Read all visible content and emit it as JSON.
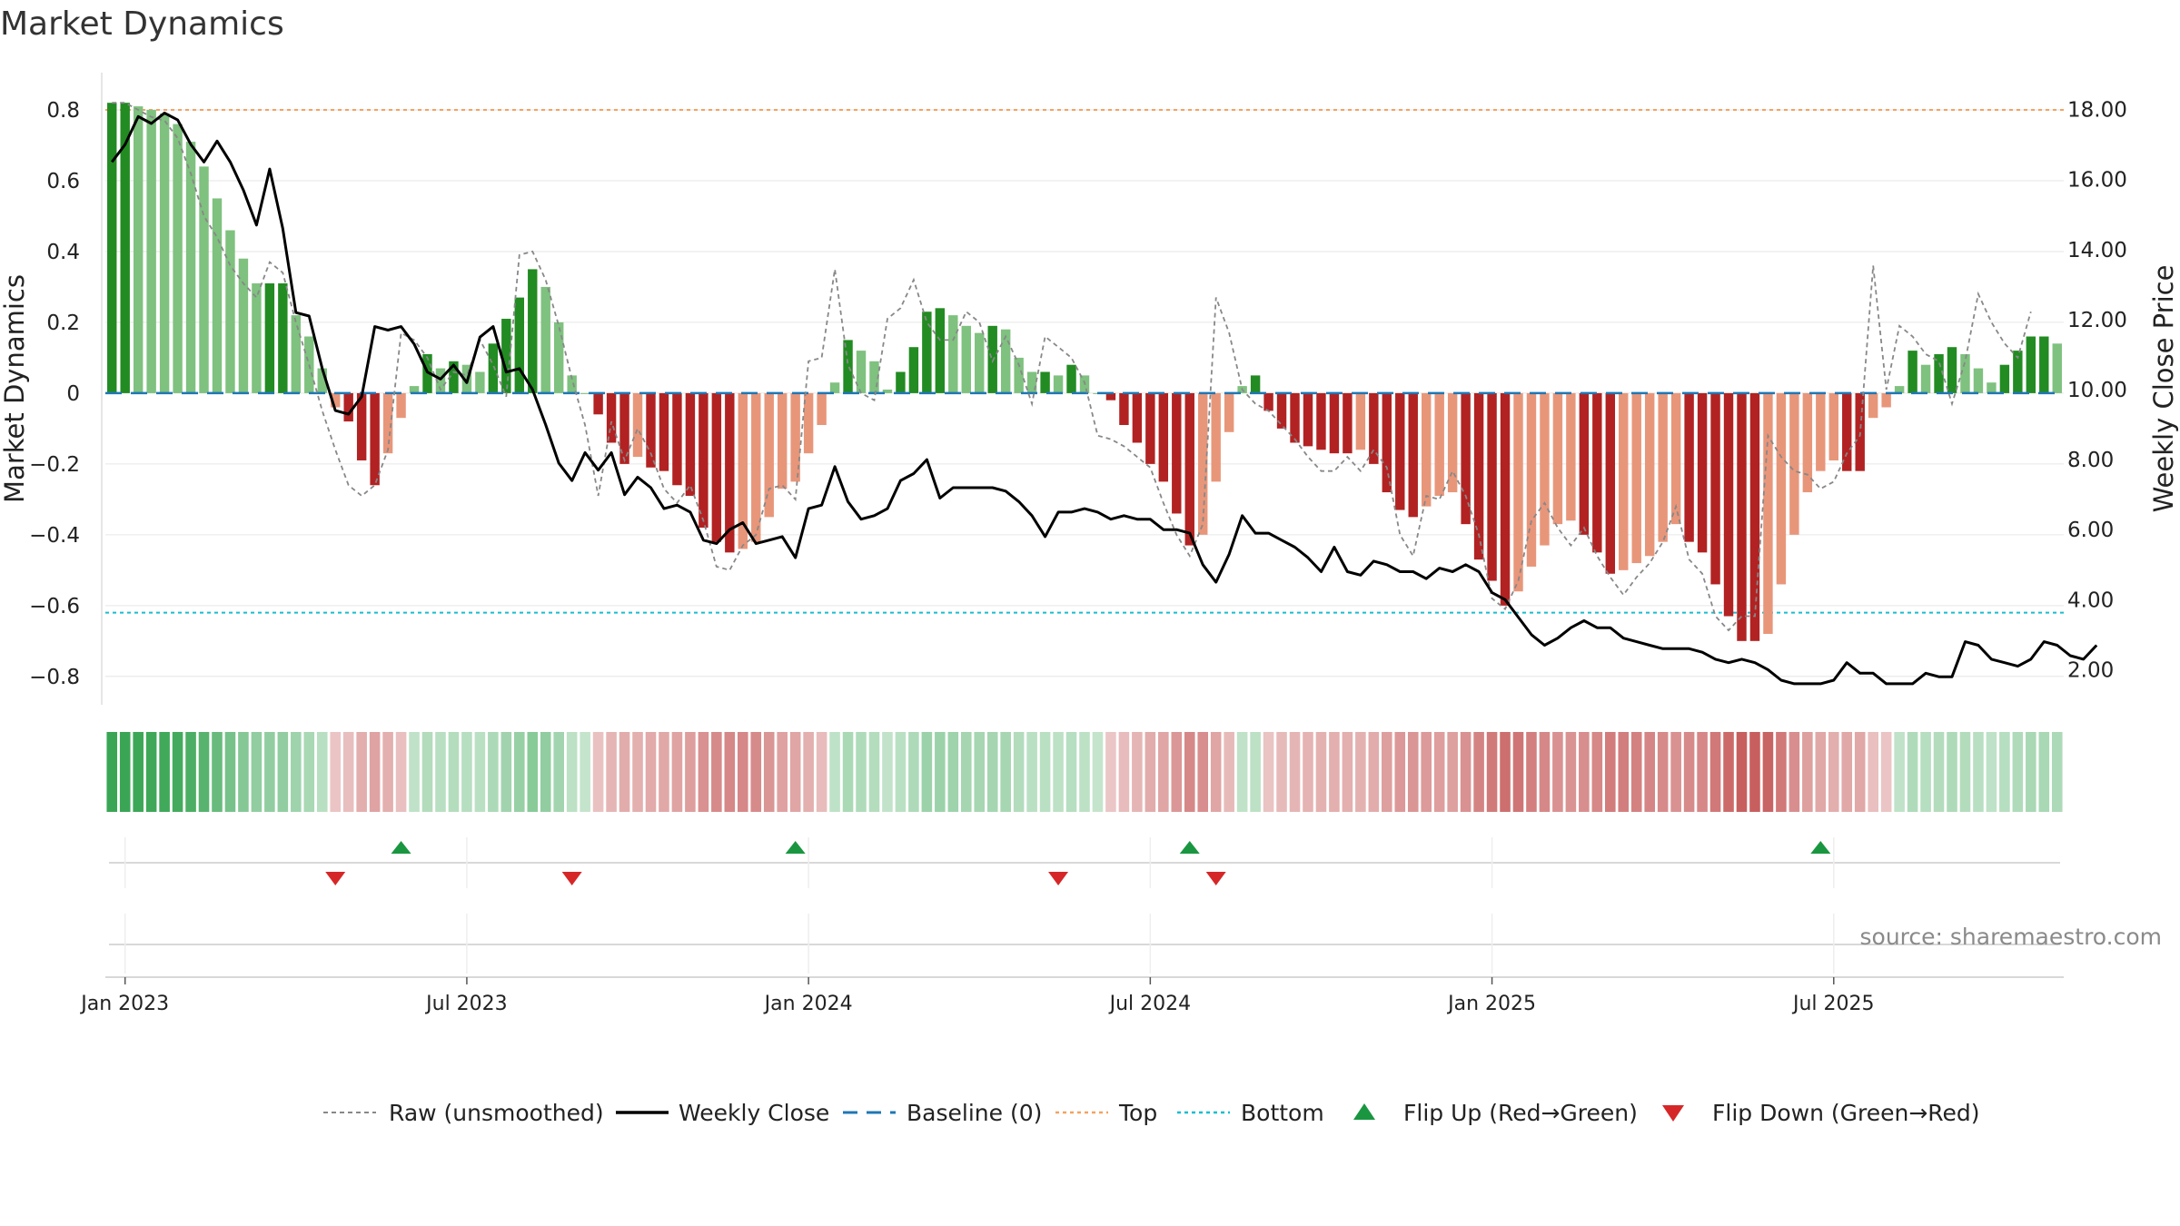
{
  "chart_data": {
    "type": "bar",
    "title": "Market Dynamics",
    "ylabel_left": "Market Dynamics",
    "ylabel_right": "Weekly Close Price",
    "source": "source: sharemaestro.com",
    "ylim_left": [
      -0.88,
      0.9
    ],
    "ylim_right": [
      1.0,
      19.0
    ],
    "left_ticks": [
      {
        "v": 0.8,
        "label": "0.8"
      },
      {
        "v": 0.6,
        "label": "0.6"
      },
      {
        "v": 0.4,
        "label": "0.4"
      },
      {
        "v": 0.2,
        "label": "0.2"
      },
      {
        "v": 0,
        "label": "0"
      },
      {
        "v": -0.2,
        "label": "−0.2"
      },
      {
        "v": -0.4,
        "label": "−0.4"
      },
      {
        "v": -0.6,
        "label": "−0.6"
      },
      {
        "v": -0.8,
        "label": "−0.8"
      }
    ],
    "right_ticks": [
      {
        "v": 18,
        "label": "18.00"
      },
      {
        "v": 16,
        "label": "16.00"
      },
      {
        "v": 14,
        "label": "14.00"
      },
      {
        "v": 12,
        "label": "12.00"
      },
      {
        "v": 10,
        "label": "10.00"
      },
      {
        "v": 8,
        "label": "8.00"
      },
      {
        "v": 6,
        "label": "6.00"
      },
      {
        "v": 4,
        "label": "4.00"
      },
      {
        "v": 2,
        "label": "2.00"
      }
    ],
    "x_ticks": [
      {
        "i": 1,
        "label": "Jan 2023"
      },
      {
        "i": 27,
        "label": "Jul 2023"
      },
      {
        "i": 53,
        "label": "Jan 2024"
      },
      {
        "i": 79,
        "label": "Jul 2024"
      },
      {
        "i": 105,
        "label": "Jan 2025"
      },
      {
        "i": 131,
        "label": "Jul 2025"
      }
    ],
    "reference_lines": {
      "baseline": 0,
      "top": 0.8,
      "bottom": -0.62
    },
    "colors": {
      "strong_green": "#228b22",
      "light_green": "#7fc17f",
      "strong_red": "#b22222",
      "light_red": "#e8967a",
      "close": "#000000",
      "raw": "#888888",
      "baseline": "#1f77b4",
      "top": "#f4a261",
      "bottom": "#17becf",
      "flip_up": "#1a9641",
      "flip_down": "#d62728"
    },
    "series": [
      {
        "name": "Market Dynamics",
        "values": [
          0.82,
          0.82,
          0.81,
          0.8,
          0.79,
          0.76,
          0.71,
          0.64,
          0.55,
          0.46,
          0.38,
          0.31,
          0.31,
          0.31,
          0.22,
          0.16,
          0.07,
          -0.04,
          -0.08,
          -0.19,
          -0.26,
          -0.17,
          -0.07,
          0.02,
          0.11,
          0.07,
          0.09,
          0.08,
          0.06,
          0.14,
          0.21,
          0.27,
          0.35,
          0.3,
          0.2,
          0.05,
          0.0,
          -0.06,
          -0.14,
          -0.2,
          -0.18,
          -0.21,
          -0.22,
          -0.26,
          -0.29,
          -0.38,
          -0.42,
          -0.45,
          -0.44,
          -0.42,
          -0.35,
          -0.27,
          -0.25,
          -0.17,
          -0.09,
          0.03,
          0.15,
          0.12,
          0.09,
          0.01,
          0.06,
          0.13,
          0.23,
          0.24,
          0.22,
          0.19,
          0.17,
          0.19,
          0.18,
          0.1,
          0.06,
          0.06,
          0.05,
          0.08,
          0.05,
          0.0,
          -0.02,
          -0.09,
          -0.14,
          -0.2,
          -0.25,
          -0.34,
          -0.43,
          -0.4,
          -0.25,
          -0.11,
          0.02,
          0.05,
          -0.05,
          -0.1,
          -0.14,
          -0.15,
          -0.16,
          -0.17,
          -0.17,
          -0.16,
          -0.2,
          -0.28,
          -0.33,
          -0.35,
          -0.32,
          -0.29,
          -0.28,
          -0.37,
          -0.47,
          -0.53,
          -0.6,
          -0.56,
          -0.49,
          -0.43,
          -0.37,
          -0.36,
          -0.4,
          -0.45,
          -0.51,
          -0.5,
          -0.48,
          -0.46,
          -0.42,
          -0.37,
          -0.42,
          -0.45,
          -0.54,
          -0.63,
          -0.7,
          -0.7,
          -0.68,
          -0.54,
          -0.4,
          -0.28,
          -0.22,
          -0.19,
          -0.22,
          -0.22,
          -0.07,
          -0.04,
          0.02,
          0.12,
          0.08,
          0.11,
          0.13,
          0.11,
          0.07,
          0.03,
          0.08,
          0.12,
          0.16,
          0.16,
          0.14
        ]
      },
      {
        "name": "Weekly Close",
        "values": [
          16.5,
          17.0,
          17.8,
          17.6,
          17.9,
          17.7,
          17.0,
          16.5,
          17.1,
          16.5,
          15.7,
          14.7,
          16.3,
          14.6,
          12.2,
          12.1,
          10.6,
          9.4,
          9.3,
          9.8,
          11.8,
          11.7,
          11.8,
          11.3,
          10.5,
          10.3,
          10.7,
          10.2,
          11.5,
          11.8,
          10.5,
          10.6,
          10.0,
          9.0,
          7.9,
          7.4,
          8.2,
          7.7,
          8.2,
          7.0,
          7.5,
          7.2,
          6.6,
          6.7,
          6.5,
          5.7,
          5.6,
          6.0,
          6.2,
          5.6,
          5.7,
          5.8,
          5.2,
          6.6,
          6.7,
          7.8,
          6.8,
          6.3,
          6.4,
          6.6,
          7.4,
          7.6,
          8.0,
          6.9,
          7.2,
          7.2,
          7.2,
          7.2,
          7.1,
          6.8,
          6.4,
          5.8,
          6.5,
          6.5,
          6.6,
          6.5,
          6.3,
          6.4,
          6.3,
          6.3,
          6.0,
          6.0,
          5.9,
          5.0,
          4.5,
          5.3,
          6.4,
          5.9,
          5.9,
          5.7,
          5.5,
          5.2,
          4.8,
          5.5,
          4.8,
          4.7,
          5.1,
          5.0,
          4.8,
          4.8,
          4.6,
          4.9,
          4.8,
          5.0,
          4.8,
          4.2,
          4.0,
          3.5,
          3.0,
          2.7,
          2.9,
          3.2,
          3.4,
          3.2,
          3.2,
          2.9,
          2.8,
          2.7,
          2.6,
          2.6,
          2.6,
          2.5,
          2.3,
          2.2,
          2.3,
          2.2,
          2.0,
          1.7,
          1.6,
          1.6,
          1.6,
          1.7,
          2.2,
          1.9,
          1.9,
          1.6,
          1.6,
          1.6,
          1.9,
          1.8,
          1.8,
          2.8,
          2.7,
          2.3,
          2.2,
          2.1,
          2.3,
          2.8,
          2.7,
          2.4,
          2.3,
          2.7
        ]
      },
      {
        "name": "Raw (unsmoothed)",
        "values": [
          0.82,
          0.82,
          0.8,
          0.78,
          0.77,
          0.72,
          0.62,
          0.5,
          0.44,
          0.36,
          0.31,
          0.27,
          0.37,
          0.34,
          0.2,
          0.08,
          -0.05,
          -0.16,
          -0.26,
          -0.29,
          -0.26,
          -0.16,
          0.17,
          0.15,
          0.1,
          0.01,
          0.06,
          0.05,
          0.15,
          0.08,
          -0.01,
          0.39,
          0.4,
          0.32,
          0.19,
          0.04,
          -0.09,
          -0.29,
          -0.08,
          -0.19,
          -0.1,
          -0.17,
          -0.27,
          -0.31,
          -0.26,
          -0.36,
          -0.49,
          -0.5,
          -0.43,
          -0.4,
          -0.27,
          -0.26,
          -0.3,
          0.09,
          0.1,
          0.35,
          0.08,
          0.0,
          -0.02,
          0.21,
          0.24,
          0.32,
          0.2,
          0.15,
          0.15,
          0.23,
          0.2,
          0.09,
          0.16,
          0.08,
          -0.03,
          0.16,
          0.13,
          0.1,
          0.03,
          -0.12,
          -0.13,
          -0.15,
          -0.18,
          -0.21,
          -0.31,
          -0.4,
          -0.46,
          -0.37,
          0.27,
          0.17,
          0.01,
          -0.03,
          -0.05,
          -0.09,
          -0.13,
          -0.18,
          -0.22,
          -0.22,
          -0.18,
          -0.22,
          -0.16,
          -0.21,
          -0.4,
          -0.46,
          -0.29,
          -0.3,
          -0.22,
          -0.29,
          -0.4,
          -0.58,
          -0.61,
          -0.53,
          -0.36,
          -0.31,
          -0.38,
          -0.43,
          -0.38,
          -0.46,
          -0.52,
          -0.57,
          -0.52,
          -0.48,
          -0.42,
          -0.32,
          -0.47,
          -0.51,
          -0.63,
          -0.67,
          -0.63,
          -0.63,
          -0.12,
          -0.18,
          -0.22,
          -0.23,
          -0.27,
          -0.25,
          -0.17,
          -0.12,
          0.36,
          0.01,
          0.19,
          0.16,
          0.11,
          0.09,
          -0.03,
          0.09,
          0.28,
          0.2,
          0.14,
          0.1,
          0.23
        ]
      },
      {
        "name": "Baseline (0)"
      },
      {
        "name": "Top"
      },
      {
        "name": "Bottom"
      },
      {
        "name": "Flip Up (Red→Green)",
        "indices": [
          22,
          52,
          82,
          130
        ]
      },
      {
        "name": "Flip Down (Green→Red)",
        "indices": [
          17,
          35,
          72,
          84
        ]
      }
    ]
  }
}
